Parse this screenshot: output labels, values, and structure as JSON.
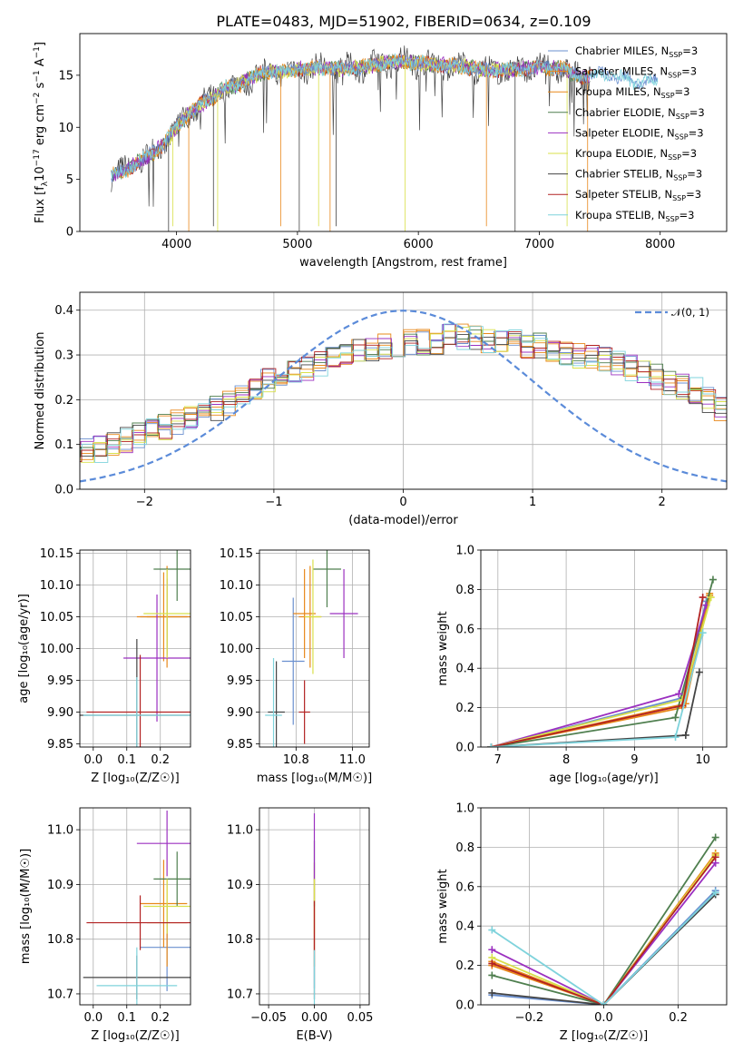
{
  "figure": {
    "title": "PLATE=0483, MJD=51902, FIBERID=0634, z=0.109"
  },
  "legend": {
    "models": [
      {
        "name": "Chabrier MILES",
        "color": "#6a8fcf"
      },
      {
        "name": "Salpeter MILES",
        "color": "#e8881a"
      },
      {
        "name": "Kroupa MILES",
        "color": "#e8881a"
      },
      {
        "name": "Chabrier ELODIE",
        "color": "#4f7f4f"
      },
      {
        "name": "Salpeter ELODIE",
        "color": "#9b30c0"
      },
      {
        "name": "Kroupa ELODIE",
        "color": "#d8e04a"
      },
      {
        "name": "Chabrier STELIB",
        "color": "#444444"
      },
      {
        "name": "Salpeter STELIB",
        "color": "#b22222"
      },
      {
        "name": "Kroupa STELIB",
        "color": "#7fd3dc"
      }
    ],
    "suffix": "N",
    "suffix_sub": "SSP",
    "suffix_tail": "=3",
    "normal_label": "𝒩(0, 1)"
  },
  "chart_data": [
    {
      "id": "spectrum",
      "type": "line",
      "xlabel": "wavelength [Angstrom, rest frame]",
      "ylabel_parts": [
        "Flux [f",
        "λ",
        "10",
        "−17",
        " erg cm",
        "−2",
        " s",
        "−1",
        " A",
        "−1",
        "]"
      ],
      "xlim": [
        3200,
        8550
      ],
      "ylim": [
        0,
        19
      ],
      "xticks": [
        4000,
        5000,
        6000,
        7000,
        8000
      ],
      "yticks": [
        0,
        5,
        10,
        15
      ],
      "continuum": {
        "x": [
          3450,
          3600,
          3700,
          3800,
          3900,
          4000,
          4100,
          4200,
          4300,
          4400,
          4500,
          4600,
          4700,
          4800,
          4900,
          5000,
          5200,
          5400,
          5600,
          5800,
          6000,
          6200,
          6400,
          6600,
          6800,
          7000,
          7200,
          7300,
          7400,
          7500,
          7600,
          7700,
          7800,
          7900
        ],
        "y": [
          5.3,
          6.0,
          6.8,
          7.5,
          8.5,
          10.0,
          11.3,
          12.2,
          12.8,
          13.8,
          14.0,
          14.6,
          15.2,
          15.4,
          15.3,
          15.6,
          15.7,
          15.6,
          15.9,
          16.3,
          16.2,
          16.0,
          15.8,
          15.4,
          15.6,
          15.8,
          15.6,
          15.0,
          14.8,
          15.2,
          14.9,
          14.8,
          14.3,
          14.4
        ]
      },
      "absorption_lines": [
        3934,
        3969,
        4101,
        4305,
        4340,
        4861,
        5015,
        5175,
        5270,
        5320,
        5890,
        6563,
        6800,
        7230,
        7400
      ]
    },
    {
      "id": "residuals",
      "type": "step",
      "xlabel": "(data-model)/error",
      "ylabel": "Normed distribution",
      "xlim": [
        -2.5,
        2.5
      ],
      "ylim": [
        0,
        0.44
      ],
      "xticks": [
        -2,
        -1,
        0,
        1,
        2
      ],
      "yticks": [
        0.0,
        0.1,
        0.2,
        0.3,
        0.4
      ],
      "bin_width": 0.1,
      "reference": "normal(0,1)",
      "bins_base": [
        0.05,
        0.06,
        0.06,
        0.07,
        0.08,
        0.09,
        0.09,
        0.1,
        0.11,
        0.12,
        0.13,
        0.14,
        0.15,
        0.16,
        0.17,
        0.18,
        0.19,
        0.21,
        0.22,
        0.24,
        0.25,
        0.26,
        0.27,
        0.28,
        0.29,
        0.3,
        0.31,
        0.31,
        0.32,
        0.32,
        0.33,
        0.33,
        0.33,
        0.34,
        0.34,
        0.34,
        0.33,
        0.33,
        0.33,
        0.32,
        0.32,
        0.31,
        0.3,
        0.3,
        0.3,
        0.29,
        0.28,
        0.27,
        0.26,
        0.25,
        0.24,
        0.23,
        0.22,
        0.2,
        0.18,
        0.17,
        0.16,
        0.14,
        0.13,
        0.12,
        0.11,
        0.1,
        0.09,
        0.08,
        0.07,
        0.06,
        0.05,
        0.05,
        0.05,
        0.04
      ]
    },
    {
      "id": "age_vs_Z",
      "type": "errorbar",
      "xlabel": "Z [log₁₀(Z/Z☉)]",
      "ylabel": "age  [log₁₀(age/yr)]",
      "xlim": [
        -0.04,
        0.29
      ],
      "ylim": [
        9.845,
        10.155
      ],
      "xticks": [
        0.0,
        0.1,
        0.2
      ],
      "yticks": [
        9.85,
        9.9,
        9.95,
        10.0,
        10.05,
        10.1,
        10.15
      ],
      "points": [
        {
          "x": 0.22,
          "y": 10.05,
          "xerr": 0.08,
          "yerr": 0.06
        },
        {
          "x": 0.22,
          "y": 10.05,
          "xerr": 0.06,
          "yerr": 0.08
        },
        {
          "x": 0.21,
          "y": 10.05,
          "xerr": 0.08,
          "yerr": 0.07
        },
        {
          "x": 0.25,
          "y": 10.125,
          "xerr": 0.07,
          "yerr": 0.05
        },
        {
          "x": 0.19,
          "y": 9.985,
          "xerr": 0.1,
          "yerr": 0.1
        },
        {
          "x": 0.22,
          "y": 10.055,
          "xerr": 0.07,
          "yerr": 0.07
        },
        {
          "x": 0.13,
          "y": 9.895,
          "xerr": 0.17,
          "yerr": 0.12
        },
        {
          "x": 0.14,
          "y": 9.9,
          "xerr": 0.16,
          "yerr": 0.09
        },
        {
          "x": 0.13,
          "y": 9.895,
          "xerr": 0.16,
          "yerr": 0.06
        }
      ]
    },
    {
      "id": "age_vs_mass",
      "type": "errorbar",
      "xlabel": "mass [log₁₀(M/M☉)]",
      "ylabel": "",
      "xlim": [
        10.67,
        11.06
      ],
      "ylim": [
        9.845,
        10.155
      ],
      "xticks": [
        10.8,
        11.0
      ],
      "yticks": [
        9.85,
        9.9,
        9.95,
        10.0,
        10.05,
        10.1,
        10.15
      ],
      "points": [
        {
          "x": 10.79,
          "y": 9.98,
          "xerr": 0.04,
          "yerr": 0.1
        },
        {
          "x": 10.85,
          "y": 10.05,
          "xerr": 0.04,
          "yerr": 0.08
        },
        {
          "x": 10.83,
          "y": 10.055,
          "xerr": 0.04,
          "yerr": 0.07
        },
        {
          "x": 10.91,
          "y": 10.125,
          "xerr": 0.05,
          "yerr": 0.06
        },
        {
          "x": 10.97,
          "y": 10.055,
          "xerr": 0.05,
          "yerr": 0.07
        },
        {
          "x": 10.86,
          "y": 10.05,
          "xerr": 0.03,
          "yerr": 0.09
        },
        {
          "x": 10.73,
          "y": 9.9,
          "xerr": 0.03,
          "yerr": 0.08
        },
        {
          "x": 10.83,
          "y": 9.9,
          "xerr": 0.02,
          "yerr": 0.05
        },
        {
          "x": 10.72,
          "y": 9.895,
          "xerr": 0.03,
          "yerr": 0.09
        }
      ]
    },
    {
      "id": "weight_vs_age",
      "type": "line",
      "xlabel": "age  [log₁₀(age/yr)]",
      "ylabel": "mass weight",
      "xlim": [
        6.75,
        10.35
      ],
      "ylim": [
        0,
        1
      ],
      "xticks": [
        7,
        8,
        9,
        10
      ],
      "yticks": [
        0.0,
        0.2,
        0.4,
        0.6,
        0.8,
        1.0
      ],
      "series": [
        {
          "x": [
            6.9,
            9.7,
            10.05
          ],
          "y": [
            0.0,
            0.25,
            0.74
          ]
        },
        {
          "x": [
            6.9,
            9.75,
            10.1
          ],
          "y": [
            0.0,
            0.22,
            0.77
          ]
        },
        {
          "x": [
            6.9,
            9.7,
            10.1
          ],
          "y": [
            0.0,
            0.2,
            0.78
          ]
        },
        {
          "x": [
            6.9,
            9.6,
            10.15
          ],
          "y": [
            0.0,
            0.15,
            0.85
          ]
        },
        {
          "x": [
            6.9,
            9.65,
            10.05
          ],
          "y": [
            0.0,
            0.27,
            0.72
          ]
        },
        {
          "x": [
            6.9,
            9.7,
            10.12
          ],
          "y": [
            0.0,
            0.24,
            0.76
          ]
        },
        {
          "x": [
            6.9,
            9.75,
            9.95
          ],
          "y": [
            0.0,
            0.06,
            0.38
          ]
        },
        {
          "x": [
            6.9,
            9.7,
            10.0
          ],
          "y": [
            0.0,
            0.21,
            0.76
          ]
        },
        {
          "x": [
            6.9,
            9.6,
            10.0
          ],
          "y": [
            0.0,
            0.05,
            0.58
          ]
        }
      ]
    },
    {
      "id": "mass_vs_Z",
      "type": "errorbar",
      "xlabel": "Z [log₁₀(Z/Z☉)]",
      "ylabel": "mass [log₁₀(M/M☉)]",
      "xlim": [
        -0.04,
        0.29
      ],
      "ylim": [
        10.68,
        11.04
      ],
      "xticks": [
        0.0,
        0.1,
        0.2
      ],
      "yticks": [
        10.7,
        10.8,
        10.9,
        11.0
      ],
      "points": [
        {
          "x": 0.22,
          "y": 10.785,
          "xerr": 0.08,
          "yerr": 0.08
        },
        {
          "x": 0.22,
          "y": 10.83,
          "xerr": 0.06,
          "yerr": 0.08
        },
        {
          "x": 0.21,
          "y": 10.865,
          "xerr": 0.07,
          "yerr": 0.08
        },
        {
          "x": 0.25,
          "y": 10.91,
          "xerr": 0.07,
          "yerr": 0.05
        },
        {
          "x": 0.22,
          "y": 10.975,
          "xerr": 0.09,
          "yerr": 0.06
        },
        {
          "x": 0.22,
          "y": 10.86,
          "xerr": 0.07,
          "yerr": 0.05
        },
        {
          "x": 0.13,
          "y": 10.73,
          "xerr": 0.16,
          "yerr": 0.04
        },
        {
          "x": 0.14,
          "y": 10.83,
          "xerr": 0.16,
          "yerr": 0.05
        },
        {
          "x": 0.13,
          "y": 10.715,
          "xerr": 0.12,
          "yerr": 0.07
        }
      ]
    },
    {
      "id": "mass_vs_ebv",
      "type": "errorbar",
      "xlabel": "E(B-V)",
      "ylabel": "",
      "xlim": [
        -0.06,
        0.06
      ],
      "ylim": [
        10.68,
        11.04
      ],
      "xticks": [
        -0.05,
        0.0,
        0.05
      ],
      "yticks": [
        10.7,
        10.8,
        10.9,
        11.0
      ],
      "points": [
        {
          "x": 0.0,
          "y": 10.79,
          "xerr": 0,
          "yerr": 0.08
        },
        {
          "x": 0.0,
          "y": 10.83,
          "xerr": 0,
          "yerr": 0.08
        },
        {
          "x": 0.0,
          "y": 10.86,
          "xerr": 0,
          "yerr": 0.08
        },
        {
          "x": 0.0,
          "y": 10.92,
          "xerr": 0,
          "yerr": 0.06
        },
        {
          "x": 0.0,
          "y": 10.97,
          "xerr": 0,
          "yerr": 0.06
        },
        {
          "x": 0.0,
          "y": 10.86,
          "xerr": 0,
          "yerr": 0.05
        },
        {
          "x": 0.0,
          "y": 10.73,
          "xerr": 0,
          "yerr": 0.04
        },
        {
          "x": 0.0,
          "y": 10.82,
          "xerr": 0,
          "yerr": 0.05
        },
        {
          "x": 0.0,
          "y": 10.71,
          "xerr": 0,
          "yerr": 0.07
        }
      ]
    },
    {
      "id": "weight_vs_Z",
      "type": "line",
      "xlabel": "Z [log₁₀(Z/Z☉)]",
      "ylabel": "mass weight",
      "xlim": [
        -0.33,
        0.33
      ],
      "ylim": [
        0,
        1
      ],
      "xticks": [
        -0.2,
        0.0,
        0.2
      ],
      "yticks": [
        0.0,
        0.2,
        0.4,
        0.6,
        0.8,
        1.0
      ],
      "series": [
        {
          "x": [
            -0.3,
            0.0,
            0.3
          ],
          "y": [
            0.05,
            0.0,
            0.58
          ]
        },
        {
          "x": [
            -0.3,
            0.0,
            0.3
          ],
          "y": [
            0.22,
            0.0,
            0.77
          ]
        },
        {
          "x": [
            -0.3,
            0.0,
            0.3
          ],
          "y": [
            0.2,
            0.0,
            0.76
          ]
        },
        {
          "x": [
            -0.3,
            0.0,
            0.3
          ],
          "y": [
            0.15,
            0.0,
            0.85
          ]
        },
        {
          "x": [
            -0.3,
            0.0,
            0.3
          ],
          "y": [
            0.28,
            0.0,
            0.72
          ]
        },
        {
          "x": [
            -0.3,
            0.0,
            0.3
          ],
          "y": [
            0.24,
            0.0,
            0.76
          ]
        },
        {
          "x": [
            -0.3,
            0.0,
            0.3
          ],
          "y": [
            0.06,
            0.0,
            0.56
          ]
        },
        {
          "x": [
            -0.3,
            0.0,
            0.3
          ],
          "y": [
            0.21,
            0.0,
            0.75
          ]
        },
        {
          "x": [
            -0.3,
            0.0,
            0.3
          ],
          "y": [
            0.38,
            0.0,
            0.57
          ]
        }
      ]
    }
  ]
}
